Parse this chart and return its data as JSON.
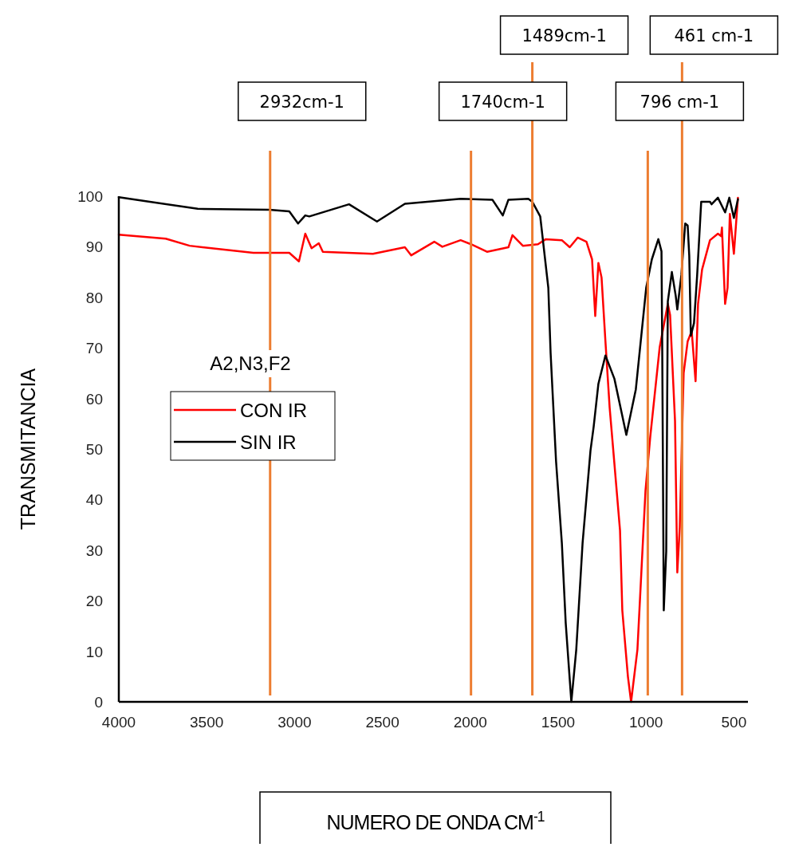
{
  "chart_data": {
    "type": "line",
    "xlabel": "NUMERO DE ONDA CM$^{-1}$",
    "ylabel": "TRANSMITANCIA",
    "legend_title": "A2,N3,F2",
    "legend": "left",
    "grid": false,
    "marker": "none",
    "line_style": "solid",
    "xlim": [
      4000,
      420
    ],
    "xticks": [
      4000,
      3500,
      3000,
      2500,
      2000,
      1500,
      1000,
      500
    ],
    "ylim": [
      0,
      100
    ],
    "yticks": [
      0,
      10,
      20,
      30,
      40,
      50,
      60,
      70,
      80,
      90,
      100
    ],
    "series": [
      {
        "name": "CON IR",
        "color": "#ff0000",
        "x": [
          4000,
          3733,
          3597,
          3234,
          3030,
          2975,
          2939,
          2903,
          2862,
          2839,
          2554,
          2372,
          2336,
          2205,
          2159,
          2055,
          1996,
          1905,
          1783,
          1760,
          1701,
          1615,
          1570,
          1479,
          1434,
          1389,
          1339,
          1307,
          1289,
          1271,
          1253,
          1231,
          1207,
          1185,
          1148,
          1135,
          1103,
          1085,
          1049,
          1026,
          1003,
          976,
          922,
          876,
          863,
          835,
          822,
          808,
          786,
          763,
          740,
          718,
          704,
          681,
          636,
          591,
          573,
          568,
          550,
          536,
          523,
          500,
          477
        ],
        "values": [
          92.4,
          91.6,
          90.2,
          88.8,
          88.8,
          87.1,
          92.6,
          89.7,
          90.7,
          89,
          88.6,
          89.9,
          88.3,
          91,
          90,
          91.3,
          90.5,
          89,
          89.9,
          92.3,
          90.2,
          90.5,
          91.5,
          91.3,
          89.9,
          91.8,
          91,
          87.5,
          76.3,
          86.8,
          83.9,
          71.3,
          58.2,
          49.2,
          33.9,
          18.1,
          5,
          0,
          10.3,
          26,
          41.8,
          52.4,
          70.2,
          78.7,
          76.5,
          55.5,
          25.6,
          34.5,
          65,
          71.3,
          73.3,
          63.4,
          78.7,
          85.5,
          91.3,
          92.6,
          92.1,
          93.8,
          78.7,
          81.9,
          96.5,
          88.6,
          99.7
        ]
      },
      {
        "name": "SIN IR",
        "color": "#000000",
        "x": [
          4000,
          3551,
          3143,
          3030,
          2980,
          2939,
          2916,
          2690,
          2531,
          2372,
          2055,
          1874,
          1815,
          1783,
          1670,
          1647,
          1602,
          1556,
          1543,
          1512,
          1479,
          1457,
          1425,
          1397,
          1361,
          1316,
          1298,
          1271,
          1231,
          1180,
          1112,
          1058,
          999,
          967,
          930,
          912,
          908,
          899,
          885,
          876,
          853,
          831,
          822,
          799,
          777,
          763,
          754,
          745,
          727,
          709,
          686,
          636,
          627,
          591,
          550,
          526,
          500,
          477
        ],
        "values": [
          99.8,
          97.5,
          97.3,
          97,
          94.6,
          96.2,
          96,
          98.4,
          95,
          98.5,
          99.5,
          99.3,
          96.2,
          99.3,
          99.5,
          98.9,
          96,
          81.9,
          69,
          47.6,
          31.4,
          15.6,
          0,
          10.3,
          31.4,
          49.7,
          54.4,
          62.9,
          68.5,
          63.9,
          52.8,
          61.8,
          81.9,
          87.5,
          91.5,
          89.1,
          71.3,
          18.1,
          29.8,
          79.2,
          85,
          80.3,
          77.6,
          84.4,
          94.6,
          94.2,
          88.2,
          72.4,
          74.9,
          84.4,
          98.9,
          98.9,
          98.4,
          99.7,
          96.8,
          99.7,
          95.7,
          99.4
        ]
      }
    ],
    "ref_lines": [
      {
        "axis": "x",
        "value": 3139,
        "label": "2932cm-1",
        "color": "#ed7d31"
      },
      {
        "axis": "x",
        "value": 1996,
        "label": "1740cm-1",
        "color": "#ed7d31"
      },
      {
        "axis": "x",
        "value": 1647,
        "label": "1489cm-1",
        "color": "#ed7d31"
      },
      {
        "axis": "x",
        "value": 990,
        "label": "796 cm-1",
        "color": "#ed7d31"
      },
      {
        "axis": "x",
        "value": 795,
        "label": "461 cm-1",
        "color": "#ed7d31"
      }
    ]
  }
}
